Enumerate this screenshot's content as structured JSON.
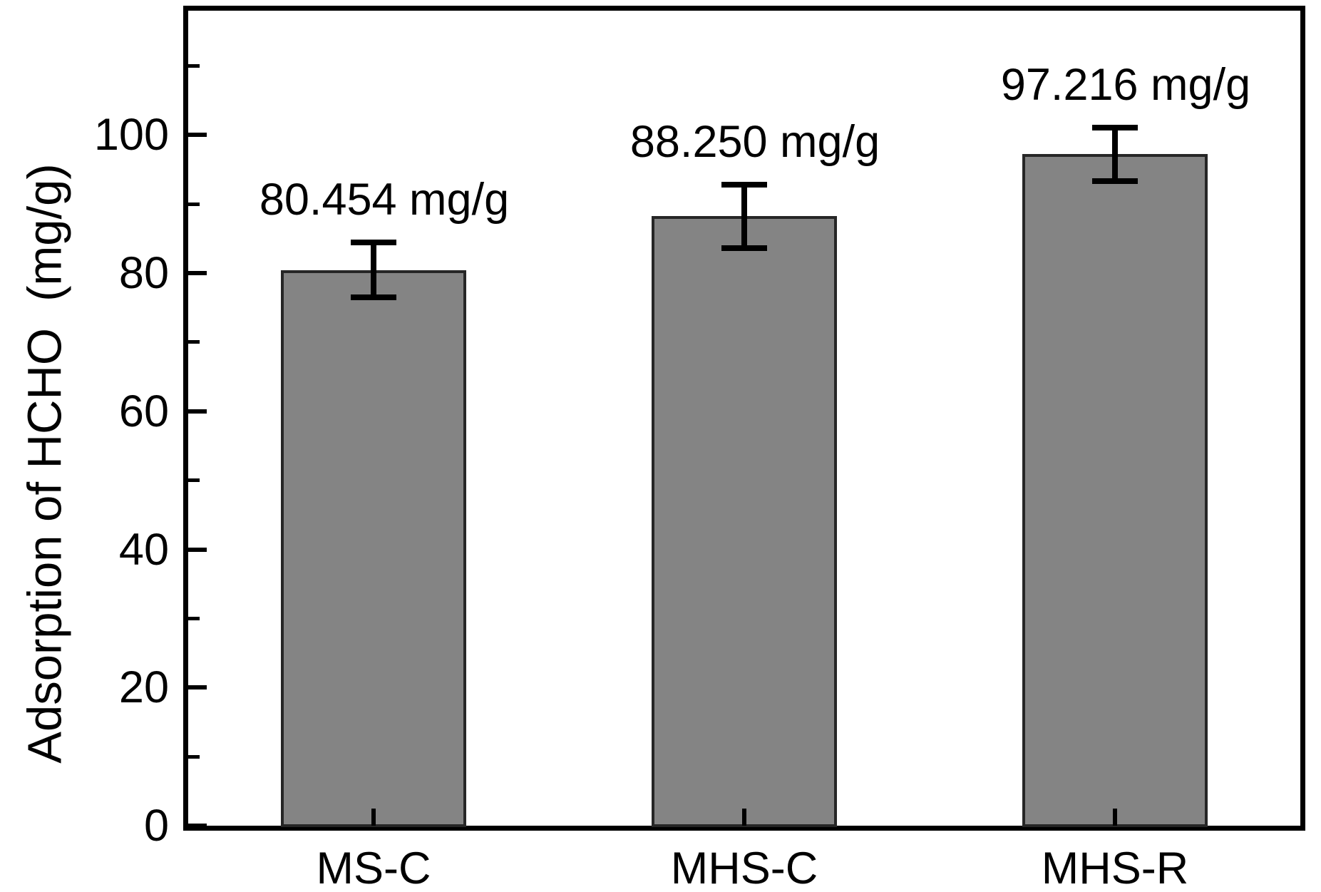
{
  "chart_data": {
    "type": "bar",
    "title": "",
    "categories": [
      "MS-C",
      "MHS-C",
      "MHS-R"
    ],
    "values": [
      80.454,
      88.25,
      97.216
    ],
    "errors": [
      4.0,
      4.6,
      3.9
    ],
    "bar_labels": [
      "80.454 mg/g",
      "88.250 mg/g",
      "97.216 mg/g"
    ],
    "xlabel": "",
    "ylabel": "Adsorption of HCHO  (mg/g)",
    "ylim": [
      0,
      118
    ],
    "y_major_ticks": [
      0,
      20,
      40,
      60,
      80,
      100
    ],
    "y_minor_ticks": [
      10,
      30,
      50,
      70,
      90,
      110
    ],
    "grid": false,
    "legend": "none",
    "colors": {
      "bar_fill": "#848484",
      "bar_edge": "#262626",
      "error_bar": "#000000",
      "axis": "#000000",
      "text": "#000000",
      "background": "#ffffff"
    }
  }
}
